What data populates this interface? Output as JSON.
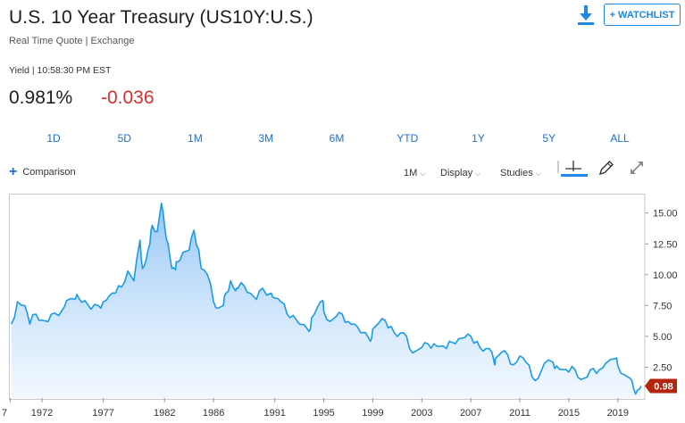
{
  "header": {
    "title": "U.S. 10 Year Treasury (US10Y:U.S.)",
    "subtitle": "Real Time Quote | Exchange",
    "watchlist_label": "+ WATCHLIST"
  },
  "quote": {
    "meta": "Yield | 10:58:30 PM EST",
    "price": "0.981%",
    "change": "-0.036"
  },
  "ranges": [
    "1D",
    "5D",
    "1M",
    "3M",
    "6M",
    "YTD",
    "1Y",
    "5Y",
    "ALL"
  ],
  "toolbar": {
    "comparison": "Comparison",
    "interval": "1M",
    "display": "Display",
    "studies": "Studies"
  },
  "colors": {
    "accent": "#1e88e5",
    "line": "#1a9be6",
    "negative": "#d3302f",
    "last_badge": "#b5240c"
  },
  "icons": [
    "download-icon",
    "plus-icon",
    "crosshair-icon",
    "pencil-icon",
    "expand-icon"
  ],
  "chart_data": {
    "type": "area",
    "ylim": [
      0,
      16.5
    ],
    "yticks": [
      "15.00",
      "12.50",
      "10.00",
      "7.50",
      "5.00",
      "2.50"
    ],
    "xticks": [
      "7",
      "1972",
      "1977",
      "1982",
      "1986",
      "1991",
      "1995",
      "1999",
      "2003",
      "2007",
      "2011",
      "2015",
      "2019"
    ],
    "last_value_label": "0.98",
    "series": [
      {
        "x": [
          1969.5,
          1970,
          1970.6,
          1971,
          1971.5,
          1972,
          1972.5,
          1973,
          1973.7,
          1974,
          1974.7,
          1975,
          1975.5,
          1976,
          1976.6,
          1977,
          1977.5,
          1978,
          1978.5,
          1979,
          1979.5,
          1980,
          1980.2,
          1980.5,
          1980.8,
          1981,
          1981.4,
          1981.75,
          1982,
          1982.3,
          1982.6,
          1982.9,
          1983,
          1983.5,
          1984,
          1984.4,
          1984.8,
          1985,
          1985.5,
          1986,
          1986.4,
          1986.8,
          1987,
          1987.4,
          1987.8,
          1988,
          1988.5,
          1989,
          1989.5,
          1990,
          1990.7,
          1991,
          1991.5,
          1992,
          1992.5,
          1993,
          1993.8,
          1994,
          1994.5,
          1994.9,
          1995,
          1995.5,
          1996,
          1996.5,
          1997,
          1997.5,
          1998,
          1998.8,
          1999,
          1999.5,
          2000,
          2000.5,
          2001,
          2001.5,
          2002,
          2002.5,
          2003,
          2003.5,
          2004,
          2004.5,
          2005,
          2005.5,
          2006,
          2006.5,
          2007,
          2007.5,
          2008,
          2008.5,
          2008.95,
          2009,
          2009.5,
          2010,
          2010.5,
          2011,
          2011.5,
          2012,
          2012.5,
          2013,
          2013.7,
          2014,
          2014.5,
          2015,
          2015.5,
          2016,
          2016.5,
          2017,
          2017.5,
          2018,
          2018.8,
          2019,
          2019.5,
          2020,
          2020.3,
          2020.6,
          2020.9
        ],
        "values": [
          6.0,
          7.8,
          7.5,
          6.0,
          6.8,
          6.3,
          6.2,
          6.9,
          7.2,
          7.9,
          8.0,
          8.1,
          7.9,
          7.2,
          7.5,
          7.8,
          8.3,
          8.5,
          9.0,
          10.3,
          9.5,
          12.8,
          10.5,
          11.2,
          12.5,
          14.0,
          13.5,
          15.8,
          14.0,
          12.5,
          10.5,
          10.4,
          11.0,
          11.8,
          12.0,
          13.6,
          12.0,
          10.5,
          10.0,
          7.8,
          7.3,
          7.5,
          8.5,
          9.5,
          8.7,
          8.9,
          9.1,
          8.5,
          8.0,
          8.9,
          8.5,
          8.1,
          7.8,
          6.8,
          6.7,
          6.0,
          5.4,
          6.5,
          7.4,
          7.9,
          7.0,
          6.2,
          6.6,
          6.8,
          6.2,
          6.0,
          5.3,
          4.6,
          5.6,
          6.1,
          6.3,
          5.8,
          5.0,
          5.3,
          4.0,
          3.8,
          4.1,
          4.4,
          4.4,
          4.2,
          4.0,
          4.5,
          4.8,
          4.9,
          5.0,
          4.6,
          3.8,
          4.0,
          2.7,
          3.2,
          3.7,
          3.5,
          2.7,
          3.4,
          2.9,
          1.7,
          1.6,
          2.8,
          2.9,
          2.6,
          2.3,
          2.1,
          2.3,
          1.5,
          1.7,
          2.4,
          2.3,
          2.8,
          3.2,
          2.6,
          1.9,
          1.6,
          0.7,
          0.65,
          0.98
        ]
      }
    ]
  }
}
